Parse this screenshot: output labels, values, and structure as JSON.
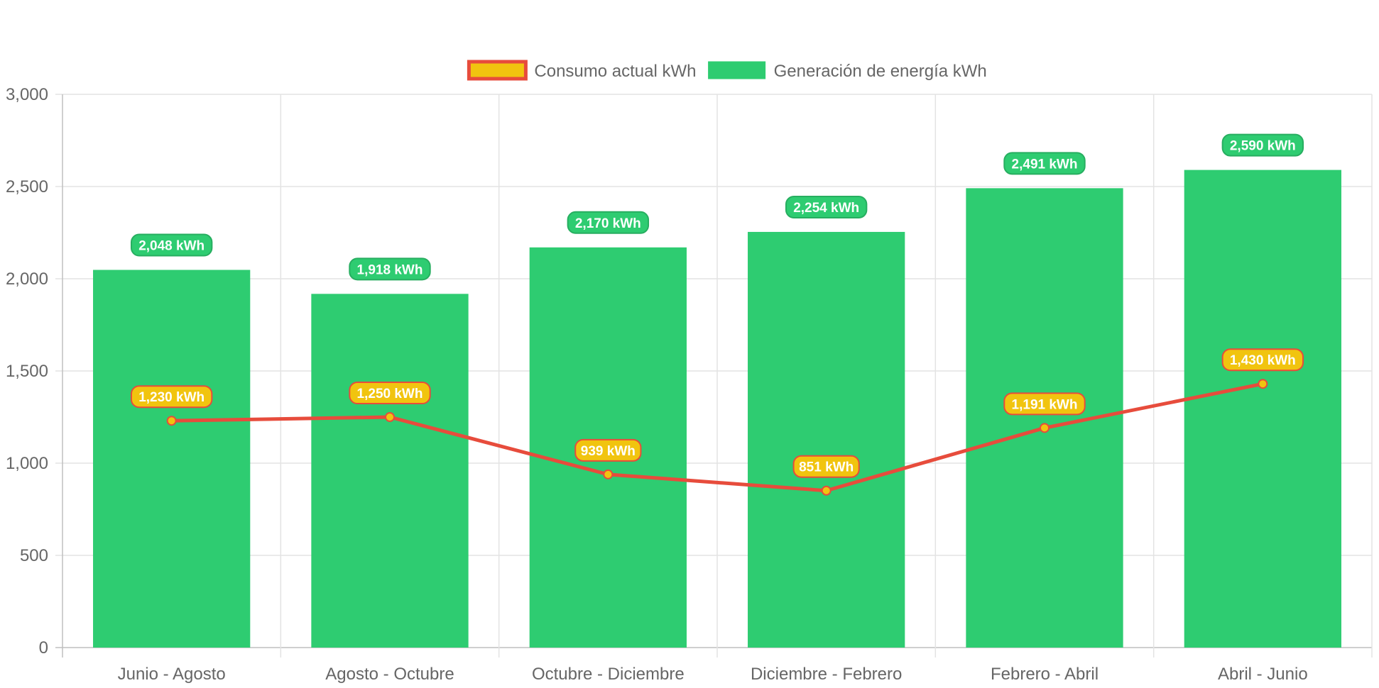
{
  "chart_data": {
    "type": "bar",
    "categories": [
      "Junio - Agosto",
      "Agosto - Octubre",
      "Octubre - Diciembre",
      "Diciembre - Febrero",
      "Febrero - Abril",
      "Abril - Junio"
    ],
    "series": [
      {
        "name": "Consumo actual kWh",
        "type": "line",
        "values": [
          1230,
          1250,
          939,
          851,
          1191,
          1430
        ],
        "data_labels": [
          "1,230 kWh",
          "1,250 kWh",
          "939 kWh",
          "851 kWh",
          "1,191 kWh",
          "1,430 kWh"
        ],
        "color": "#f1c40f",
        "border_color": "#e74c3c"
      },
      {
        "name": "Generación de energía kWh",
        "type": "bar",
        "values": [
          2048,
          1918,
          2170,
          2254,
          2491,
          2590
        ],
        "data_labels": [
          "2,048 kWh",
          "1,918 kWh",
          "2,170 kWh",
          "2,254 kWh",
          "2,491 kWh",
          "2,590 kWh"
        ],
        "color": "#2ecc71",
        "border_color": "#27ae60"
      }
    ],
    "ylim": [
      0,
      3000
    ],
    "yticks": [
      "0",
      "500",
      "1,000",
      "1,500",
      "2,000",
      "2,500",
      "3,000"
    ],
    "grid": true,
    "legend_position": "top-center",
    "xlabel": "",
    "ylabel": "",
    "title": ""
  }
}
